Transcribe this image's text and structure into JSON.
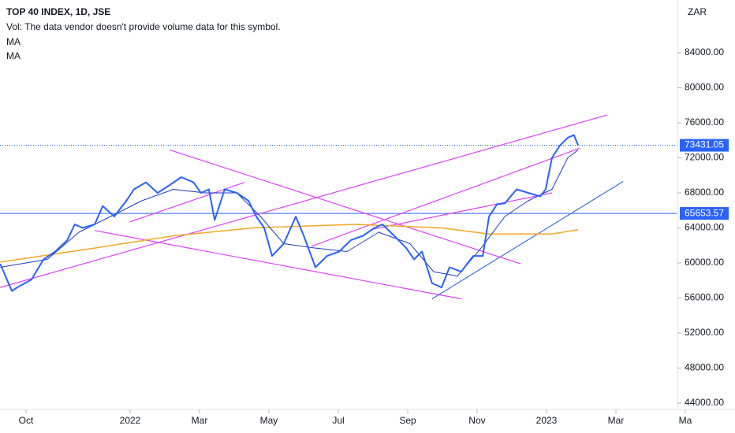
{
  "chart_data": {
    "type": "line",
    "title": "TOP 40 INDEX, 1D, JSE",
    "volume_note": "Vol: The data vendor doesn't provide volume data for this symbol.",
    "currency": "ZAR",
    "xlim": [
      2021.6875,
      2023.3125
    ],
    "ylim": [
      43280,
      90020
    ],
    "xticks": [
      {
        "value": 2021.75,
        "label": "Oct"
      },
      2022,
      {
        "value": 2022.1667,
        "label": "Mar"
      },
      {
        "value": 2022.3333,
        "label": "May"
      },
      {
        "value": 2022.5,
        "label": "Jul"
      },
      {
        "value": 2022.6667,
        "label": "Sep"
      },
      {
        "value": 2022.8333,
        "label": "Nov"
      },
      2023,
      {
        "value": 2023.1667,
        "label": "Mar"
      },
      {
        "value": 2023.3333,
        "label": "Ma"
      }
    ],
    "yticks": [
      {
        "value": 44000,
        "label": "44000.00"
      },
      {
        "value": 48000,
        "label": "48000.00"
      },
      {
        "value": 52000,
        "label": "52000.00"
      },
      {
        "value": 56000,
        "label": "56000.00"
      },
      {
        "value": 60000,
        "label": "60000.00"
      },
      {
        "value": 64000,
        "label": "64000.00"
      },
      {
        "value": 68000,
        "label": "68000.00"
      },
      {
        "value": 72000,
        "label": "72000.00"
      },
      {
        "value": 76000,
        "label": "76000.00"
      },
      {
        "value": 80000,
        "label": "80000.00"
      },
      {
        "value": 84000,
        "label": "84000.00"
      }
    ],
    "series": [
      {
        "color": "#2962ff",
        "width": 2,
        "x": [
          2021.688,
          2021.716,
          2021.729,
          2021.763,
          2021.792,
          2021.82,
          2021.849,
          2021.867,
          2021.886,
          2021.915,
          2021.934,
          2021.962,
          2021.991,
          2022.009,
          2022.038,
          2022.066,
          2022.095,
          2022.123,
          2022.152,
          2022.17,
          2022.189,
          2022.203,
          2022.227,
          2022.256,
          2022.284,
          2022.303,
          2022.322,
          2022.341,
          2022.369,
          2022.398,
          2022.417,
          2022.445,
          2022.473,
          2022.502,
          2022.53,
          2022.559,
          2022.587,
          2022.606,
          2022.634,
          2022.663,
          2022.682,
          2022.701,
          2022.725,
          2022.748,
          2022.767,
          2022.795,
          2022.824,
          2022.847,
          2022.862,
          2022.881,
          2022.9,
          2022.928,
          2022.956,
          2022.985,
          2022.998,
          2023.013,
          2023.032,
          2023.051,
          2023.066,
          2023.076
        ],
        "values": [
          59900,
          56800,
          57200,
          58100,
          60400,
          61300,
          62600,
          64400,
          64000,
          64400,
          66500,
          65300,
          67100,
          68400,
          69200,
          68000,
          68900,
          69800,
          69200,
          68000,
          68400,
          64900,
          68400,
          68000,
          67100,
          65300,
          64000,
          60800,
          62200,
          65300,
          63100,
          59500,
          60800,
          61300,
          62600,
          63100,
          64000,
          64400,
          63100,
          61700,
          60400,
          61300,
          57700,
          57200,
          59500,
          59000,
          60800,
          60800,
          65300,
          66700,
          66800,
          68400,
          68000,
          67600,
          68400,
          72000,
          73400,
          74300,
          74600,
          73431.05
        ]
      },
      {
        "name": "MA",
        "color": "#1e3fbf",
        "width": 1,
        "x": [
          2021.688,
          2021.801,
          2021.877,
          2021.953,
          2022.028,
          2022.104,
          2022.18,
          2022.256,
          2022.313,
          2022.369,
          2022.445,
          2022.521,
          2022.597,
          2022.672,
          2022.729,
          2022.786,
          2022.843,
          2022.9,
          2022.956,
          2023.013,
          2023.051,
          2023.076
        ],
        "values": [
          59500,
          60400,
          63500,
          65300,
          67100,
          68400,
          68000,
          68000,
          65300,
          62200,
          61700,
          61300,
          63500,
          62200,
          59000,
          58500,
          61700,
          65300,
          67100,
          68400,
          72000,
          72900
        ]
      },
      {
        "name": "MA",
        "color": "#f5a623",
        "width": 1.5,
        "x": [
          2021.688,
          2021.915,
          2022.104,
          2022.294,
          2022.54,
          2022.748,
          2022.862,
          2023.013,
          2023.076
        ],
        "values": [
          60100,
          61700,
          63100,
          64000,
          64400,
          64000,
          63300,
          63300,
          63800
        ]
      }
    ],
    "trendlines": [
      {
        "color": "#e040fb",
        "x": [
          2021.915,
          2022.795
        ],
        "y": [
          63700,
          55900
        ]
      },
      {
        "color": "#e040fb",
        "x": [
          2022.095,
          2022.938
        ],
        "y": [
          72900,
          59900
        ]
      },
      {
        "color": "#e040fb",
        "x": [
          2021.688,
          2023.146
        ],
        "y": [
          57200,
          76900
        ]
      },
      {
        "color": "#e040fb",
        "x": [
          2022.0,
          2022.275
        ],
        "y": [
          64700,
          69200
        ]
      },
      {
        "color": "#e040fb",
        "x": [
          2022.436,
          2023.08
        ],
        "y": [
          61900,
          73100
        ]
      },
      {
        "color": "#e040fb",
        "x": [
          2022.578,
          2023.013
        ],
        "y": [
          63800,
          68000
        ]
      },
      {
        "color": "#3d6fd6",
        "x": [
          2022.725,
          2023.184
        ],
        "y": [
          55900,
          69300
        ]
      }
    ],
    "price_lines": [
      {
        "value": 65653.57,
        "color": "#2962ff",
        "style": "solid"
      },
      {
        "value": 73431.05,
        "color": "#2962ff",
        "style": "dotted"
      }
    ]
  }
}
